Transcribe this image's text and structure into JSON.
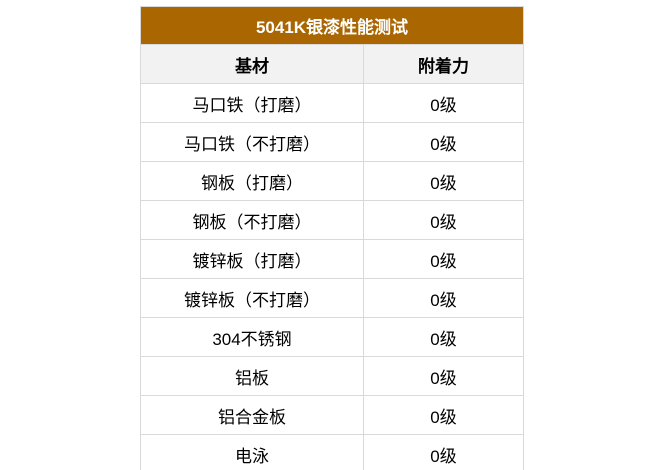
{
  "table": {
    "title": "5041K银漆性能测试",
    "columns": {
      "substrate": "基材",
      "adhesion": "附着力"
    },
    "rows": [
      {
        "substrate": "马口铁（打磨）",
        "adhesion": "0级"
      },
      {
        "substrate": "马口铁（不打磨）",
        "adhesion": "0级"
      },
      {
        "substrate": "钢板（打磨）",
        "adhesion": "0级"
      },
      {
        "substrate": "钢板（不打磨）",
        "adhesion": "0级"
      },
      {
        "substrate": "镀锌板（打磨）",
        "adhesion": "0级"
      },
      {
        "substrate": "镀锌板（不打磨）",
        "adhesion": "0级"
      },
      {
        "substrate": "304不锈钢",
        "adhesion": "0级"
      },
      {
        "substrate": "铝板",
        "adhesion": "0级"
      },
      {
        "substrate": "铝合金板",
        "adhesion": "0级"
      },
      {
        "substrate": "电泳",
        "adhesion": "0级"
      }
    ],
    "colors": {
      "title_background": "#aa6600",
      "title_text": "#ffffff",
      "header_background": "#f2f2f2",
      "border": "#d9d9d9",
      "body_text": "#000000"
    }
  }
}
